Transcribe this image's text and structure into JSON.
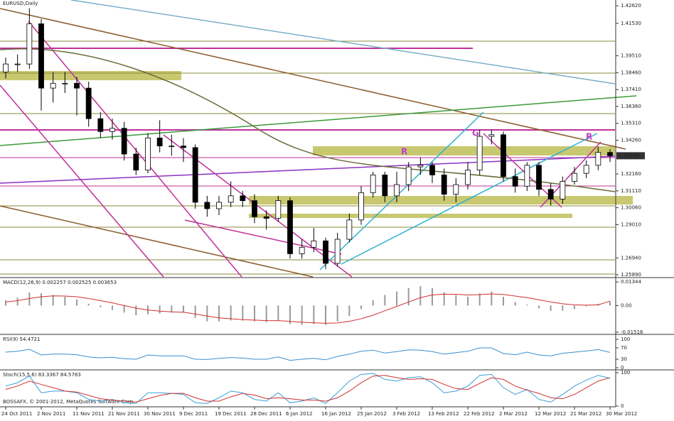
{
  "chart_data": [
    {
      "type": "candlestick",
      "title": "EURUSD,Daily",
      "x": [
        "24 Oct 2011",
        "26 Oct 2011",
        "28 Oct 2011",
        "2 Nov 2011",
        "4 Nov 2011",
        "8 Nov 2011",
        "11 Nov 2011",
        "15 Nov 2011",
        "17 Nov 2011",
        "21 Nov 2011",
        "23 Nov 2011",
        "25 Nov 2011",
        "30 Nov 2011",
        "2 Dec 2011",
        "6 Dec 2011",
        "9 Dec 2011",
        "13 Dec 2011",
        "15 Dec 2011",
        "19 Dec 2011",
        "21 Dec 2011",
        "23 Dec 2011",
        "28 Dec 2011",
        "30 Dec 2011",
        "3 Jan 2012",
        "6 Jan 2012",
        "10 Jan 2012",
        "12 Jan 2012",
        "16 Jan 2012",
        "18 Jan 2012",
        "20 Jan 2012",
        "25 Jan 2012",
        "27 Jan 2012",
        "31 Jan 2012",
        "3 Feb 2012",
        "7 Feb 2012",
        "9 Feb 2012",
        "13 Feb 2012",
        "15 Feb 2012",
        "17 Feb 2012",
        "22 Feb 2012",
        "24 Feb 2012",
        "28 Feb 2012",
        "2 Mar 2012",
        "6 Mar 2012",
        "8 Mar 2012",
        "12 Mar 2012",
        "14 Mar 2012",
        "16 Mar 2012",
        "21 Mar 2012",
        "23 Mar 2012",
        "27 Mar 2012",
        "30 Mar 2012"
      ],
      "open": [
        1.385,
        1.39,
        1.39,
        1.415,
        1.375,
        1.378,
        1.378,
        1.375,
        1.356,
        1.348,
        1.35,
        1.334,
        1.324,
        1.344,
        1.339,
        1.339,
        1.338,
        1.304,
        1.3,
        1.304,
        1.308,
        1.305,
        1.295,
        1.294,
        1.305,
        1.272,
        1.276,
        1.28,
        1.266,
        1.281,
        1.293,
        1.31,
        1.321,
        1.308,
        1.315,
        1.326,
        1.327,
        1.321,
        1.309,
        1.315,
        1.324,
        1.345,
        1.346,
        1.32,
        1.314,
        1.327,
        1.312,
        1.306,
        1.317,
        1.322,
        1.327,
        1.335
      ],
      "high": [
        1.394,
        1.396,
        1.4247,
        1.418,
        1.385,
        1.385,
        1.382,
        1.379,
        1.36,
        1.356,
        1.354,
        1.338,
        1.347,
        1.355,
        1.346,
        1.344,
        1.34,
        1.308,
        1.308,
        1.317,
        1.311,
        1.309,
        1.299,
        1.308,
        1.307,
        1.281,
        1.288,
        1.282,
        1.285,
        1.297,
        1.314,
        1.323,
        1.323,
        1.323,
        1.329,
        1.332,
        1.329,
        1.325,
        1.319,
        1.329,
        1.349,
        1.349,
        1.348,
        1.325,
        1.329,
        1.329,
        1.316,
        1.32,
        1.326,
        1.33,
        1.3385,
        1.337
      ],
      "low": [
        1.381,
        1.385,
        1.387,
        1.361,
        1.366,
        1.372,
        1.358,
        1.351,
        1.344,
        1.343,
        1.33,
        1.321,
        1.322,
        1.335,
        1.333,
        1.329,
        1.3,
        1.295,
        1.296,
        1.301,
        1.301,
        1.291,
        1.287,
        1.292,
        1.269,
        1.269,
        1.273,
        1.2624,
        1.264,
        1.279,
        1.29,
        1.307,
        1.304,
        1.304,
        1.311,
        1.321,
        1.316,
        1.305,
        1.304,
        1.312,
        1.321,
        1.34,
        1.317,
        1.31,
        1.311,
        1.308,
        1.302,
        1.303,
        1.315,
        1.319,
        1.324,
        1.329
      ],
      "close": [
        1.39,
        1.39,
        1.415,
        1.375,
        1.378,
        1.378,
        1.375,
        1.356,
        1.348,
        1.35,
        1.334,
        1.324,
        1.344,
        1.339,
        1.339,
        1.338,
        1.304,
        1.3,
        1.304,
        1.308,
        1.305,
        1.295,
        1.294,
        1.305,
        1.272,
        1.276,
        1.28,
        1.266,
        1.281,
        1.293,
        1.31,
        1.321,
        1.308,
        1.315,
        1.326,
        1.327,
        1.321,
        1.309,
        1.315,
        1.324,
        1.345,
        1.346,
        1.32,
        1.314,
        1.327,
        1.312,
        1.306,
        1.317,
        1.322,
        1.327,
        1.335,
        1.333
      ],
      "ylim": [
        1.2576,
        1.4298
      ],
      "yticks": [
        {
          "value": 1.4262,
          "label": "1.42620"
        },
        {
          "value": 1.4153,
          "label": "1.41530"
        },
        {
          "value": 1.3951,
          "label": "1.39510"
        },
        {
          "value": 1.3846,
          "label": "1.38460"
        },
        {
          "value": 1.3741,
          "label": "1.37410"
        },
        {
          "value": 1.3636,
          "label": "1.36360"
        },
        {
          "value": 1.3531,
          "label": "1.35310"
        },
        {
          "value": 1.3426,
          "label": "1.34260"
        },
        {
          "value": 1.3216,
          "label": "1.32160"
        },
        {
          "value": 1.3111,
          "label": "1.31110"
        },
        {
          "value": 1.3006,
          "label": "1.30060"
        },
        {
          "value": 1.2901,
          "label": "1.29010"
        },
        {
          "value": 1.2694,
          "label": "1.26940"
        },
        {
          "value": 1.2589,
          "label": "1.25890"
        }
      ],
      "last_price": {
        "value": 1.33294,
        "label": "1.33294"
      },
      "xticks": [
        "24 Oct 2011",
        "2 Nov 2011",
        "11 Nov 2011",
        "21 Nov 2011",
        "30 Nov 2011",
        "9 Dec 2011",
        "19 Dec 2011",
        "28 Dec 2011",
        "6 Jan 2012",
        "16 Jan 2012",
        "25 Jan 2012",
        "3 Feb 2012",
        "13 Feb 2012",
        "22 Feb 2012",
        "2 Mar 2012",
        "12 Mar 2012",
        "21 Mar 2012",
        "30 Mar 2012"
      ],
      "annotations": [
        "R",
        "G",
        "R"
      ],
      "credit": "BOSSAFX, © 2001-2012, MetaQuotes Software Corp."
    },
    {
      "type": "macd",
      "title": "MACD(12,26,9) 0.002257 0.002525 0.003653",
      "values": [
        0.003,
        0.0045,
        0.0075,
        0.007,
        0.006,
        0.005,
        0.0035,
        0.001,
        -0.001,
        -0.0025,
        -0.004,
        -0.0055,
        -0.005,
        -0.0045,
        -0.004,
        -0.004,
        -0.007,
        -0.009,
        -0.009,
        -0.0085,
        -0.0085,
        -0.009,
        -0.0095,
        -0.0085,
        -0.0105,
        -0.011,
        -0.0105,
        -0.011,
        -0.009,
        -0.006,
        -0.002,
        0.003,
        0.006,
        0.008,
        0.01,
        0.011,
        0.01,
        0.0075,
        0.006,
        0.005,
        0.007,
        0.008,
        0.005,
        0.002,
        0.0005,
        -0.0015,
        -0.003,
        -0.003,
        -0.002,
        -0.0005,
        0.001,
        0.0023
      ],
      "color": "#9a9a9a",
      "signal": [
        0.002,
        0.0028,
        0.004,
        0.005,
        0.0055,
        0.0054,
        0.005,
        0.004,
        0.0028,
        0.0015,
        0.0,
        -0.0015,
        -0.0025,
        -0.0032,
        -0.0036,
        -0.0038,
        -0.0048,
        -0.006,
        -0.007,
        -0.0075,
        -0.008,
        -0.0083,
        -0.0086,
        -0.0086,
        -0.009,
        -0.0095,
        -0.0098,
        -0.0101,
        -0.0099,
        -0.009,
        -0.0075,
        -0.0055,
        -0.003,
        -0.0005,
        0.002,
        0.0045,
        0.006,
        0.0065,
        0.0064,
        0.006,
        0.0062,
        0.0066,
        0.0063,
        0.0054,
        0.0045,
        0.0033,
        0.002,
        0.001,
        0.0004,
        0.0002,
        0.0004,
        0.0025
      ],
      "signal_color": "#d03030",
      "ylim": [
        -0.016,
        0.0155
      ],
      "yticks": [
        0.01344,
        {
          "value": 0,
          "label": "0.00"
        },
        -0.01516
      ]
    },
    {
      "type": "line",
      "title": "RSI(9) 54.4721",
      "lines": [
        {
          "color": "#3a8fd0",
          "values": [
            55,
            58,
            65,
            45,
            48,
            48,
            46,
            38,
            35,
            37,
            32,
            30,
            45,
            42,
            42,
            42,
            30,
            29,
            33,
            36,
            34,
            30,
            30,
            38,
            26,
            30,
            33,
            28,
            40,
            48,
            58,
            62,
            52,
            57,
            63,
            62,
            57,
            48,
            53,
            58,
            70,
            70,
            50,
            46,
            55,
            45,
            42,
            51,
            55,
            59,
            64,
            54
          ]
        }
      ],
      "ylim": [
        0,
        100
      ],
      "yticks": [
        100,
        70,
        30,
        0
      ]
    },
    {
      "type": "line",
      "title": "Stoch(15,5,6) 83.3367 84.5783",
      "lines": [
        {
          "color": "#3a9fd8",
          "values": [
            60,
            70,
            90,
            40,
            45,
            45,
            40,
            20,
            15,
            20,
            10,
            8,
            40,
            40,
            38,
            35,
            10,
            8,
            25,
            45,
            40,
            20,
            15,
            40,
            10,
            15,
            25,
            8,
            40,
            75,
            95,
            98,
            80,
            75,
            85,
            88,
            70,
            40,
            45,
            60,
            92,
            95,
            55,
            35,
            50,
            20,
            12,
            35,
            60,
            78,
            92,
            83
          ]
        },
        {
          "color": "#d03030",
          "values": [
            50,
            60,
            75,
            65,
            55,
            45,
            42,
            32,
            22,
            18,
            15,
            12,
            22,
            32,
            38,
            38,
            25,
            15,
            15,
            28,
            38,
            33,
            22,
            25,
            22,
            18,
            18,
            15,
            25,
            45,
            70,
            90,
            92,
            85,
            80,
            82,
            80,
            65,
            52,
            50,
            68,
            85,
            80,
            60,
            48,
            38,
            25,
            22,
            35,
            55,
            75,
            85
          ]
        }
      ],
      "ylim": [
        0,
        100
      ],
      "yticks": [
        100,
        0
      ]
    }
  ]
}
